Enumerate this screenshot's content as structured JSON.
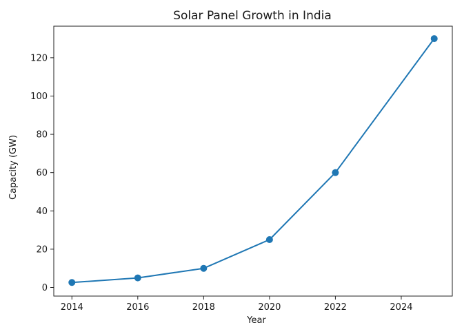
{
  "chart_data": {
    "type": "line",
    "title": "Solar Panel Growth in India",
    "xlabel": "Year",
    "ylabel": "Capacity (GW)",
    "x": [
      2014,
      2016,
      2018,
      2020,
      2022,
      2025
    ],
    "series": [
      {
        "values": [
          2.6,
          5,
          10,
          25,
          60,
          130
        ],
        "color": "#1f77b4",
        "marker": "circle"
      }
    ],
    "xlim": [
      2013.45,
      2025.55
    ],
    "ylim": [
      -4.5,
      136.5
    ],
    "xticks": [
      2014,
      2016,
      2018,
      2020,
      2022,
      2024
    ],
    "yticks": [
      0,
      20,
      40,
      60,
      80,
      100,
      120
    ],
    "grid": false,
    "legend": "none"
  }
}
